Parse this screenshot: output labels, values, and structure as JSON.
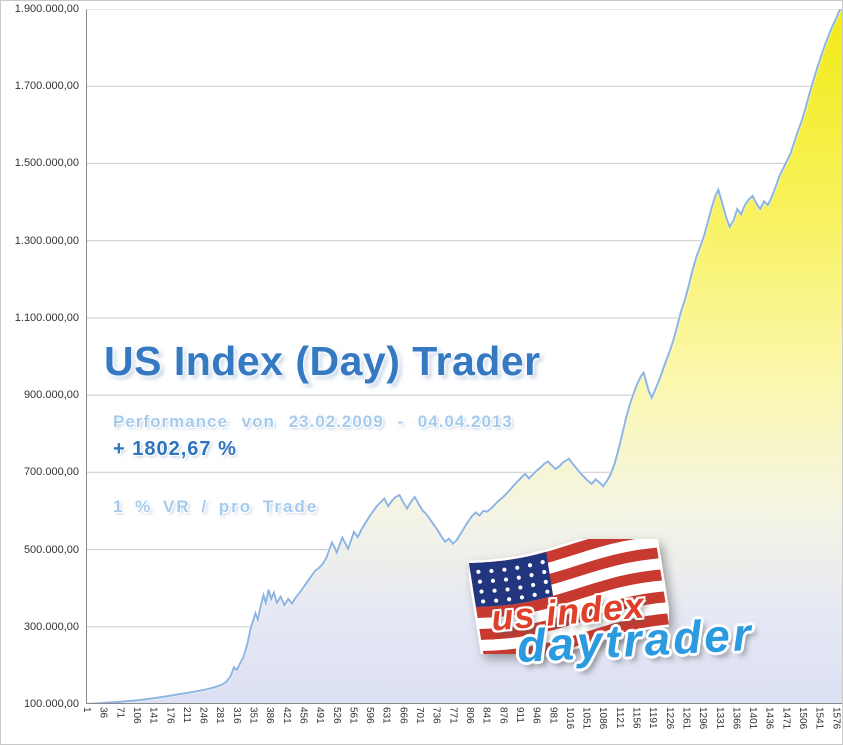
{
  "annotations": {
    "title": "US Index (Day) Trader",
    "performance": "Performance von 23.02.2009 - 04.04.2013",
    "total_return": "+ 1802,67 %",
    "risk": "1 % VR / pro Trade"
  },
  "logo": {
    "word1": "us index",
    "word2": "daytrader"
  },
  "colors": {
    "title_blue": "#3579c2",
    "light_blue": "#a4cbec",
    "deep_blue": "#2d73bd",
    "logo_red": "#e0402a",
    "logo_blue": "#2b9ade",
    "flag_red": "#c8392f",
    "flag_blue": "#22357f",
    "grid": "#c9c9c9",
    "axis": "#8a8a8a",
    "line": "#8fb6e2"
  },
  "chart_data": {
    "type": "area",
    "title": "US Index (Day) Trader",
    "xlabel": "",
    "ylabel": "",
    "grid": "horizontal",
    "legend": "none",
    "xlim": [
      1,
      1590
    ],
    "ylim": [
      100000,
      1900000
    ],
    "y_ticks": [
      {
        "v": 100000,
        "label": "100.000,00"
      },
      {
        "v": 300000,
        "label": "300.000,00"
      },
      {
        "v": 500000,
        "label": "500.000,00"
      },
      {
        "v": 700000,
        "label": "700.000,00"
      },
      {
        "v": 900000,
        "label": "900.000,00"
      },
      {
        "v": 1100000,
        "label": "1.100.000,00"
      },
      {
        "v": 1300000,
        "label": "1.300.000,00"
      },
      {
        "v": 1500000,
        "label": "1.500.000,00"
      },
      {
        "v": 1700000,
        "label": "1.700.000,00"
      },
      {
        "v": 1900000,
        "label": "1.900.000,00"
      }
    ],
    "x_ticks": [
      "1",
      "36",
      "71",
      "106",
      "141",
      "176",
      "211",
      "246",
      "281",
      "316",
      "351",
      "386",
      "421",
      "456",
      "491",
      "526",
      "561",
      "596",
      "631",
      "666",
      "701",
      "736",
      "771",
      "806",
      "841",
      "876",
      "911",
      "946",
      "981",
      "1016",
      "1051",
      "1086",
      "1121",
      "1156",
      "1191",
      "1226",
      "1261",
      "1296",
      "1331",
      "1366",
      "1401",
      "1436",
      "1471",
      "1506",
      "1541",
      "1576"
    ],
    "fill_stops": [
      {
        "offset": 0,
        "color": "#f1e90c"
      },
      {
        "offset": 0.28,
        "color": "#f7f154"
      },
      {
        "offset": 0.52,
        "color": "#fbf7a6"
      },
      {
        "offset": 0.72,
        "color": "#f4f4e2"
      },
      {
        "offset": 0.88,
        "color": "#e4e7f4"
      },
      {
        "offset": 1,
        "color": "#d9def1"
      }
    ],
    "points": [
      [
        1,
        100000
      ],
      [
        15,
        101000
      ],
      [
        30,
        102000
      ],
      [
        45,
        103500
      ],
      [
        60,
        104500
      ],
      [
        75,
        106000
      ],
      [
        90,
        107500
      ],
      [
        105,
        109000
      ],
      [
        120,
        111000
      ],
      [
        135,
        113500
      ],
      [
        150,
        116000
      ],
      [
        165,
        119000
      ],
      [
        180,
        122000
      ],
      [
        195,
        125000
      ],
      [
        210,
        128000
      ],
      [
        225,
        131000
      ],
      [
        240,
        134500
      ],
      [
        255,
        138000
      ],
      [
        270,
        143000
      ],
      [
        285,
        149000
      ],
      [
        295,
        156000
      ],
      [
        305,
        172000
      ],
      [
        312,
        195000
      ],
      [
        318,
        188000
      ],
      [
        325,
        205000
      ],
      [
        332,
        222000
      ],
      [
        340,
        255000
      ],
      [
        347,
        295000
      ],
      [
        352,
        315000
      ],
      [
        357,
        335000
      ],
      [
        362,
        318000
      ],
      [
        368,
        352000
      ],
      [
        374,
        382000
      ],
      [
        379,
        362000
      ],
      [
        385,
        396000
      ],
      [
        390,
        372000
      ],
      [
        396,
        388000
      ],
      [
        402,
        362000
      ],
      [
        410,
        378000
      ],
      [
        418,
        356000
      ],
      [
        426,
        372000
      ],
      [
        434,
        360000
      ],
      [
        442,
        376000
      ],
      [
        450,
        388000
      ],
      [
        458,
        402000
      ],
      [
        466,
        416000
      ],
      [
        474,
        430000
      ],
      [
        482,
        444000
      ],
      [
        490,
        452000
      ],
      [
        498,
        462000
      ],
      [
        506,
        478000
      ],
      [
        512,
        498000
      ],
      [
        518,
        518000
      ],
      [
        523,
        506000
      ],
      [
        528,
        492000
      ],
      [
        534,
        512000
      ],
      [
        540,
        531000
      ],
      [
        546,
        516000
      ],
      [
        552,
        502000
      ],
      [
        558,
        523000
      ],
      [
        564,
        546000
      ],
      [
        572,
        532000
      ],
      [
        580,
        552000
      ],
      [
        588,
        568000
      ],
      [
        596,
        584000
      ],
      [
        604,
        598000
      ],
      [
        612,
        612000
      ],
      [
        620,
        622000
      ],
      [
        628,
        632000
      ],
      [
        636,
        612000
      ],
      [
        644,
        626000
      ],
      [
        652,
        636000
      ],
      [
        660,
        641000
      ],
      [
        668,
        622000
      ],
      [
        676,
        606000
      ],
      [
        684,
        624000
      ],
      [
        692,
        636000
      ],
      [
        700,
        618000
      ],
      [
        708,
        602000
      ],
      [
        716,
        592000
      ],
      [
        724,
        578000
      ],
      [
        732,
        564000
      ],
      [
        740,
        550000
      ],
      [
        748,
        534000
      ],
      [
        756,
        520000
      ],
      [
        764,
        528000
      ],
      [
        772,
        515000
      ],
      [
        780,
        524000
      ],
      [
        788,
        540000
      ],
      [
        796,
        556000
      ],
      [
        804,
        572000
      ],
      [
        812,
        586000
      ],
      [
        820,
        596000
      ],
      [
        828,
        588000
      ],
      [
        836,
        600000
      ],
      [
        844,
        598000
      ],
      [
        852,
        606000
      ],
      [
        860,
        616000
      ],
      [
        868,
        626000
      ],
      [
        876,
        634000
      ],
      [
        884,
        644000
      ],
      [
        892,
        654000
      ],
      [
        900,
        666000
      ],
      [
        908,
        676000
      ],
      [
        916,
        686000
      ],
      [
        924,
        696000
      ],
      [
        932,
        684000
      ],
      [
        940,
        694000
      ],
      [
        948,
        704000
      ],
      [
        956,
        712000
      ],
      [
        964,
        722000
      ],
      [
        972,
        728000
      ],
      [
        980,
        718000
      ],
      [
        988,
        708000
      ],
      [
        996,
        716000
      ],
      [
        1004,
        726000
      ],
      [
        1016,
        735000
      ],
      [
        1024,
        722000
      ],
      [
        1032,
        710000
      ],
      [
        1040,
        698000
      ],
      [
        1048,
        688000
      ],
      [
        1056,
        678000
      ],
      [
        1064,
        670000
      ],
      [
        1072,
        682000
      ],
      [
        1080,
        674000
      ],
      [
        1088,
        664000
      ],
      [
        1096,
        678000
      ],
      [
        1104,
        696000
      ],
      [
        1112,
        722000
      ],
      [
        1120,
        758000
      ],
      [
        1128,
        798000
      ],
      [
        1136,
        840000
      ],
      [
        1144,
        876000
      ],
      [
        1152,
        904000
      ],
      [
        1160,
        930000
      ],
      [
        1168,
        950000
      ],
      [
        1173,
        958000
      ],
      [
        1178,
        936000
      ],
      [
        1184,
        910000
      ],
      [
        1190,
        893000
      ],
      [
        1196,
        910000
      ],
      [
        1204,
        934000
      ],
      [
        1212,
        960000
      ],
      [
        1220,
        988000
      ],
      [
        1228,
        1014000
      ],
      [
        1236,
        1044000
      ],
      [
        1244,
        1080000
      ],
      [
        1252,
        1118000
      ],
      [
        1260,
        1148000
      ],
      [
        1268,
        1184000
      ],
      [
        1276,
        1224000
      ],
      [
        1284,
        1258000
      ],
      [
        1292,
        1284000
      ],
      [
        1300,
        1312000
      ],
      [
        1308,
        1348000
      ],
      [
        1316,
        1384000
      ],
      [
        1324,
        1416000
      ],
      [
        1330,
        1432000
      ],
      [
        1338,
        1398000
      ],
      [
        1346,
        1362000
      ],
      [
        1354,
        1336000
      ],
      [
        1362,
        1352000
      ],
      [
        1370,
        1382000
      ],
      [
        1378,
        1368000
      ],
      [
        1386,
        1392000
      ],
      [
        1394,
        1406000
      ],
      [
        1402,
        1416000
      ],
      [
        1410,
        1396000
      ],
      [
        1418,
        1382000
      ],
      [
        1426,
        1402000
      ],
      [
        1434,
        1392000
      ],
      [
        1442,
        1412000
      ],
      [
        1450,
        1438000
      ],
      [
        1458,
        1466000
      ],
      [
        1466,
        1486000
      ],
      [
        1474,
        1506000
      ],
      [
        1482,
        1526000
      ],
      [
        1490,
        1556000
      ],
      [
        1498,
        1586000
      ],
      [
        1506,
        1612000
      ],
      [
        1514,
        1646000
      ],
      [
        1522,
        1682000
      ],
      [
        1530,
        1716000
      ],
      [
        1538,
        1748000
      ],
      [
        1546,
        1778000
      ],
      [
        1554,
        1806000
      ],
      [
        1562,
        1832000
      ],
      [
        1570,
        1856000
      ],
      [
        1578,
        1876000
      ],
      [
        1584,
        1894000
      ],
      [
        1590,
        1908000
      ]
    ]
  }
}
